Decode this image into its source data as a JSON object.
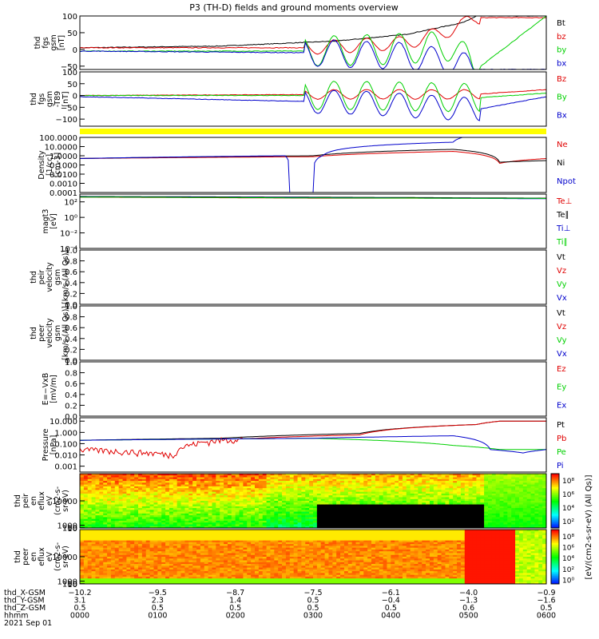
{
  "title": "P3 (TH-D) fields and ground moments overview",
  "date": "2021 Sep 01",
  "colors": {
    "black": "#000000",
    "red": "#e00000",
    "green": "#00d000",
    "blue": "#0000cc",
    "yellow": "#ffff00"
  },
  "chart_data": [
    {
      "type": "line",
      "ylabel": [
        "thd",
        "fgs",
        "gsm",
        "[nT]"
      ],
      "ylim": [
        -60,
        100
      ],
      "yticks": [
        {
          "v": 100,
          "t": "100"
        },
        {
          "v": 50,
          "t": "50"
        },
        {
          "v": 0,
          "t": "0"
        },
        {
          "v": -50,
          "t": "−50"
        }
      ],
      "series": [
        {
          "name": "Bt",
          "color": "#000000",
          "wave": 0,
          "pts": [
            [
              0,
              5
            ],
            [
              0.3,
              10
            ],
            [
              0.55,
              25
            ],
            [
              0.7,
              45
            ],
            [
              0.82,
              80
            ],
            [
              0.85,
              100
            ]
          ]
        },
        {
          "name": "bz",
          "color": "#e00000",
          "wave": 20,
          "pts": [
            [
              0,
              5
            ],
            [
              0.5,
              5
            ],
            [
              0.7,
              20
            ],
            [
              0.8,
              60
            ],
            [
              0.85,
              95
            ]
          ]
        },
        {
          "name": "by",
          "color": "#00d000",
          "wave": 45,
          "pts": [
            [
              0,
              -5
            ],
            [
              0.5,
              -5
            ],
            [
              0.65,
              0
            ],
            [
              0.8,
              10
            ],
            [
              0.85,
              -60
            ],
            [
              1,
              100
            ]
          ]
        },
        {
          "name": "bx",
          "color": "#0000cc",
          "wave": 40,
          "pts": [
            [
              0,
              -5
            ],
            [
              0.5,
              -10
            ],
            [
              0.7,
              -20
            ],
            [
              0.8,
              -40
            ],
            [
              0.85,
              -60
            ]
          ]
        }
      ]
    },
    {
      "type": "line",
      "ylabel": [
        "thd",
        "fgs",
        "gsm",
        "-T89",
        "[nT]"
      ],
      "ylim": [
        -130,
        100
      ],
      "yticks": [
        {
          "v": 100,
          "t": "100"
        },
        {
          "v": 50,
          "t": "50"
        },
        {
          "v": 0,
          "t": "0"
        },
        {
          "v": -50,
          "t": "−50"
        },
        {
          "v": -100,
          "t": "−100"
        }
      ],
      "series": [
        {
          "name": "Bz",
          "color": "#e00000",
          "wave": 20,
          "pts": [
            [
              0,
              0
            ],
            [
              0.6,
              5
            ],
            [
              0.85,
              5
            ],
            [
              1,
              25
            ]
          ]
        },
        {
          "name": "By",
          "color": "#00d000",
          "wave": 60,
          "pts": [
            [
              0,
              0
            ],
            [
              0.6,
              0
            ],
            [
              0.85,
              -10
            ],
            [
              1,
              10
            ]
          ]
        },
        {
          "name": "Bx",
          "color": "#0000cc",
          "wave": 50,
          "pts": [
            [
              0,
              -5
            ],
            [
              0.6,
              -30
            ],
            [
              0.85,
              -60
            ],
            [
              1,
              -5
            ]
          ]
        }
      ]
    },
    {
      "type": "line",
      "log": true,
      "ylabel": [
        "Density",
        "[1/cc]",
        "[cm-3]"
      ],
      "ylim": [
        0.0001,
        100
      ],
      "yticks": [
        {
          "v": 100,
          "t": "100.0000"
        },
        {
          "v": 10,
          "t": "10.0000"
        },
        {
          "v": 1,
          "t": "1.0000"
        },
        {
          "v": 0.1,
          "t": "0.1000"
        },
        {
          "v": 0.01,
          "t": "0.0100"
        },
        {
          "v": 0.001,
          "t": "0.0010"
        },
        {
          "v": 0.0001,
          "t": "0.0001"
        }
      ],
      "series": [
        {
          "name": "Ne",
          "color": "#e00000",
          "pts": [
            [
              0,
              0.5
            ],
            [
              0.5,
              0.8
            ],
            [
              0.8,
              3
            ],
            [
              0.9,
              0.15
            ],
            [
              1,
              0.5
            ]
          ]
        },
        {
          "name": "Ni",
          "color": "#000000",
          "pts": [
            [
              0,
              0.5
            ],
            [
              0.5,
              1
            ],
            [
              0.8,
              5
            ],
            [
              0.9,
              0.2
            ],
            [
              1,
              0.3
            ]
          ]
        },
        {
          "name": "Npot",
          "color": "#0000cc",
          "pts": [
            [
              0,
              0.5
            ],
            [
              0.44,
              1
            ],
            [
              0.45,
              0.0001
            ],
            [
              0.5,
              0.0001
            ],
            [
              0.52,
              1
            ],
            [
              0.8,
              30
            ],
            [
              0.82,
              100
            ]
          ]
        }
      ]
    },
    {
      "type": "line",
      "log": true,
      "ylabel": [
        "magt3",
        "[eV]"
      ],
      "ylim": [
        0.0001,
        1000
      ],
      "yticks": [
        {
          "v": 100,
          "t": "10²"
        },
        {
          "v": 1,
          "t": "10⁰"
        },
        {
          "v": 0.01,
          "t": "10⁻²"
        },
        {
          "v": 0.0001,
          "t": "10⁻⁴"
        }
      ],
      "series": [
        {
          "name": "Te⊥",
          "color": "#e00000",
          "pts": [
            [
              0,
              400
            ],
            [
              0.5,
              300
            ],
            [
              1,
              300
            ]
          ]
        },
        {
          "name": "Te∥",
          "color": "#000000",
          "pts": [
            [
              0,
              500
            ],
            [
              0.5,
              400
            ],
            [
              1,
              300
            ]
          ]
        },
        {
          "name": "Ti⊥",
          "color": "#0000cc",
          "pts": [
            [
              0,
              450
            ],
            [
              0.5,
              350
            ],
            [
              1,
              250
            ]
          ]
        },
        {
          "name": "Ti∥",
          "color": "#00d000",
          "pts": [
            [
              0,
              420
            ],
            [
              0.5,
              320
            ],
            [
              1,
              280
            ]
          ]
        }
      ]
    },
    {
      "type": "line",
      "ylabel": [
        "thd",
        "peir",
        "velocity",
        "gsm",
        "[km/s (All Qs)]"
      ],
      "ylim": [
        0,
        1
      ],
      "yticks": [
        {
          "v": 1,
          "t": "1.0"
        },
        {
          "v": 0.8,
          "t": "0.8"
        },
        {
          "v": 0.6,
          "t": "0.6"
        },
        {
          "v": 0.4,
          "t": "0.4"
        },
        {
          "v": 0.2,
          "t": "0.2"
        },
        {
          "v": 0,
          "t": "0.0"
        }
      ],
      "series": [
        {
          "name": "Vt",
          "color": "#000000",
          "pts": []
        },
        {
          "name": "Vz",
          "color": "#e00000",
          "pts": []
        },
        {
          "name": "Vy",
          "color": "#00d000",
          "pts": []
        },
        {
          "name": "Vx",
          "color": "#0000cc",
          "pts": []
        }
      ]
    },
    {
      "type": "line",
      "ylabel": [
        "thd",
        "peer",
        "velocity",
        "gsm",
        "[km/s (All Qs)]"
      ],
      "ylim": [
        0,
        1
      ],
      "yticks": [
        {
          "v": 1,
          "t": "1.0"
        },
        {
          "v": 0.8,
          "t": "0.8"
        },
        {
          "v": 0.6,
          "t": "0.6"
        },
        {
          "v": 0.4,
          "t": "0.4"
        },
        {
          "v": 0.2,
          "t": "0.2"
        },
        {
          "v": 0,
          "t": "0.0"
        }
      ],
      "series": [
        {
          "name": "Vt",
          "color": "#000000",
          "pts": []
        },
        {
          "name": "Vz",
          "color": "#e00000",
          "pts": []
        },
        {
          "name": "Vy",
          "color": "#00d000",
          "pts": []
        },
        {
          "name": "Vx",
          "color": "#0000cc",
          "pts": []
        }
      ]
    },
    {
      "type": "line",
      "ylabel": [
        "E=−VxB",
        "[mV/m]"
      ],
      "ylim": [
        0,
        1
      ],
      "yticks": [
        {
          "v": 1,
          "t": "1.0"
        },
        {
          "v": 0.8,
          "t": "0.8"
        },
        {
          "v": 0.6,
          "t": "0.6"
        },
        {
          "v": 0.4,
          "t": "0.4"
        },
        {
          "v": 0.2,
          "t": "0.2"
        },
        {
          "v": 0,
          "t": "0.0"
        }
      ],
      "series": [
        {
          "name": "Ez",
          "color": "#e00000",
          "pts": []
        },
        {
          "name": "Ey",
          "color": "#00d000",
          "pts": []
        },
        {
          "name": "Ex",
          "color": "#0000cc",
          "pts": []
        }
      ]
    },
    {
      "type": "line",
      "log": true,
      "ylabel": [
        "Pressure",
        "[nPa]"
      ],
      "ylim": [
        0.0003,
        20
      ],
      "yticks": [
        {
          "v": 10,
          "t": "10.000"
        },
        {
          "v": 1,
          "t": "1.000"
        },
        {
          "v": 0.1,
          "t": "0.100"
        },
        {
          "v": 0.01,
          "t": "0.010"
        },
        {
          "v": 0.001,
          "t": "0.001"
        }
      ],
      "series": [
        {
          "name": "Pt",
          "color": "#000000",
          "pts": [
            [
              0,
              0.2
            ],
            [
              0.3,
              0.3
            ],
            [
              0.6,
              0.8
            ],
            [
              0.85,
              5
            ],
            [
              0.9,
              10
            ]
          ]
        },
        {
          "name": "Pb",
          "color": "#e00000",
          "noise": true,
          "pts": [
            [
              0,
              0.03
            ],
            [
              0.2,
              0.01
            ],
            [
              0.3,
              0.2
            ],
            [
              0.6,
              0.6
            ],
            [
              0.85,
              5
            ],
            [
              0.9,
              10
            ]
          ]
        },
        {
          "name": "Pe",
          "color": "#00d000",
          "pts": [
            [
              0,
              0.2
            ],
            [
              0.5,
              0.3
            ],
            [
              0.8,
              0.07
            ],
            [
              0.9,
              0.03
            ],
            [
              1,
              0.03
            ]
          ]
        },
        {
          "name": "Pi",
          "color": "#0000cc",
          "pts": [
            [
              0,
              0.2
            ],
            [
              0.5,
              0.3
            ],
            [
              0.8,
              0.5
            ],
            [
              0.88,
              0.03
            ],
            [
              0.95,
              0.015
            ],
            [
              1,
              0.03
            ]
          ]
        }
      ]
    },
    {
      "type": "heatmap",
      "ylabel": [
        "thd",
        "peir",
        "en",
        "eflux",
        "eV",
        "(cm2-s-",
        "sr-eV)"
      ],
      "ylim": [
        7,
        20000
      ],
      "yticks": [
        {
          "v": 10000,
          "t": "10000"
        },
        {
          "v": 1000,
          "t": "1000"
        },
        {
          "v": 100,
          "t": "100"
        },
        {
          "v": 10,
          "t": "10"
        }
      ]
    },
    {
      "type": "heatmap",
      "ylabel": [
        "thd",
        "peer",
        "en",
        "eflux",
        "eV",
        "(cm2-s-",
        "sr-eV)"
      ],
      "ylim": [
        7,
        20000
      ],
      "yticks": [
        {
          "v": 10000,
          "t": "10000"
        },
        {
          "v": 1000,
          "t": "1000"
        },
        {
          "v": 100,
          "t": "100"
        },
        {
          "v": 10,
          "t": "10"
        }
      ]
    }
  ],
  "colorbars": [
    {
      "ticks": [
        "10⁸",
        "10⁶",
        "10⁴",
        "10²"
      ],
      "label": "[eV/(cm2-s-sr-eV) (All Qs)]"
    },
    {
      "ticks": [
        "10⁸",
        "10⁶",
        "10⁴",
        "10²",
        "10⁰"
      ],
      "label": "[eV/(cm2-s-sr-eV) (All Qs)]"
    }
  ],
  "x_axis": {
    "rows": [
      {
        "label": "thd_X-GSM",
        "values": [
          "−10.2",
          "−9.5",
          "−8.7",
          "−7.5",
          "−6.1",
          "−4.0",
          "−0.9"
        ]
      },
      {
        "label": "thd_Y-GSM",
        "values": [
          "3.1",
          "2.3",
          "1.4",
          "0.5",
          "−0.4",
          "−1.3",
          "−1.6"
        ]
      },
      {
        "label": "thd_Z-GSM",
        "values": [
          "0.5",
          "0.5",
          "0.5",
          "0.5",
          "0.5",
          "0.6",
          "0.5"
        ]
      },
      {
        "label": "hhmm",
        "values": [
          "0000",
          "0100",
          "0200",
          "0300",
          "0400",
          "0500",
          "0600"
        ]
      }
    ]
  }
}
